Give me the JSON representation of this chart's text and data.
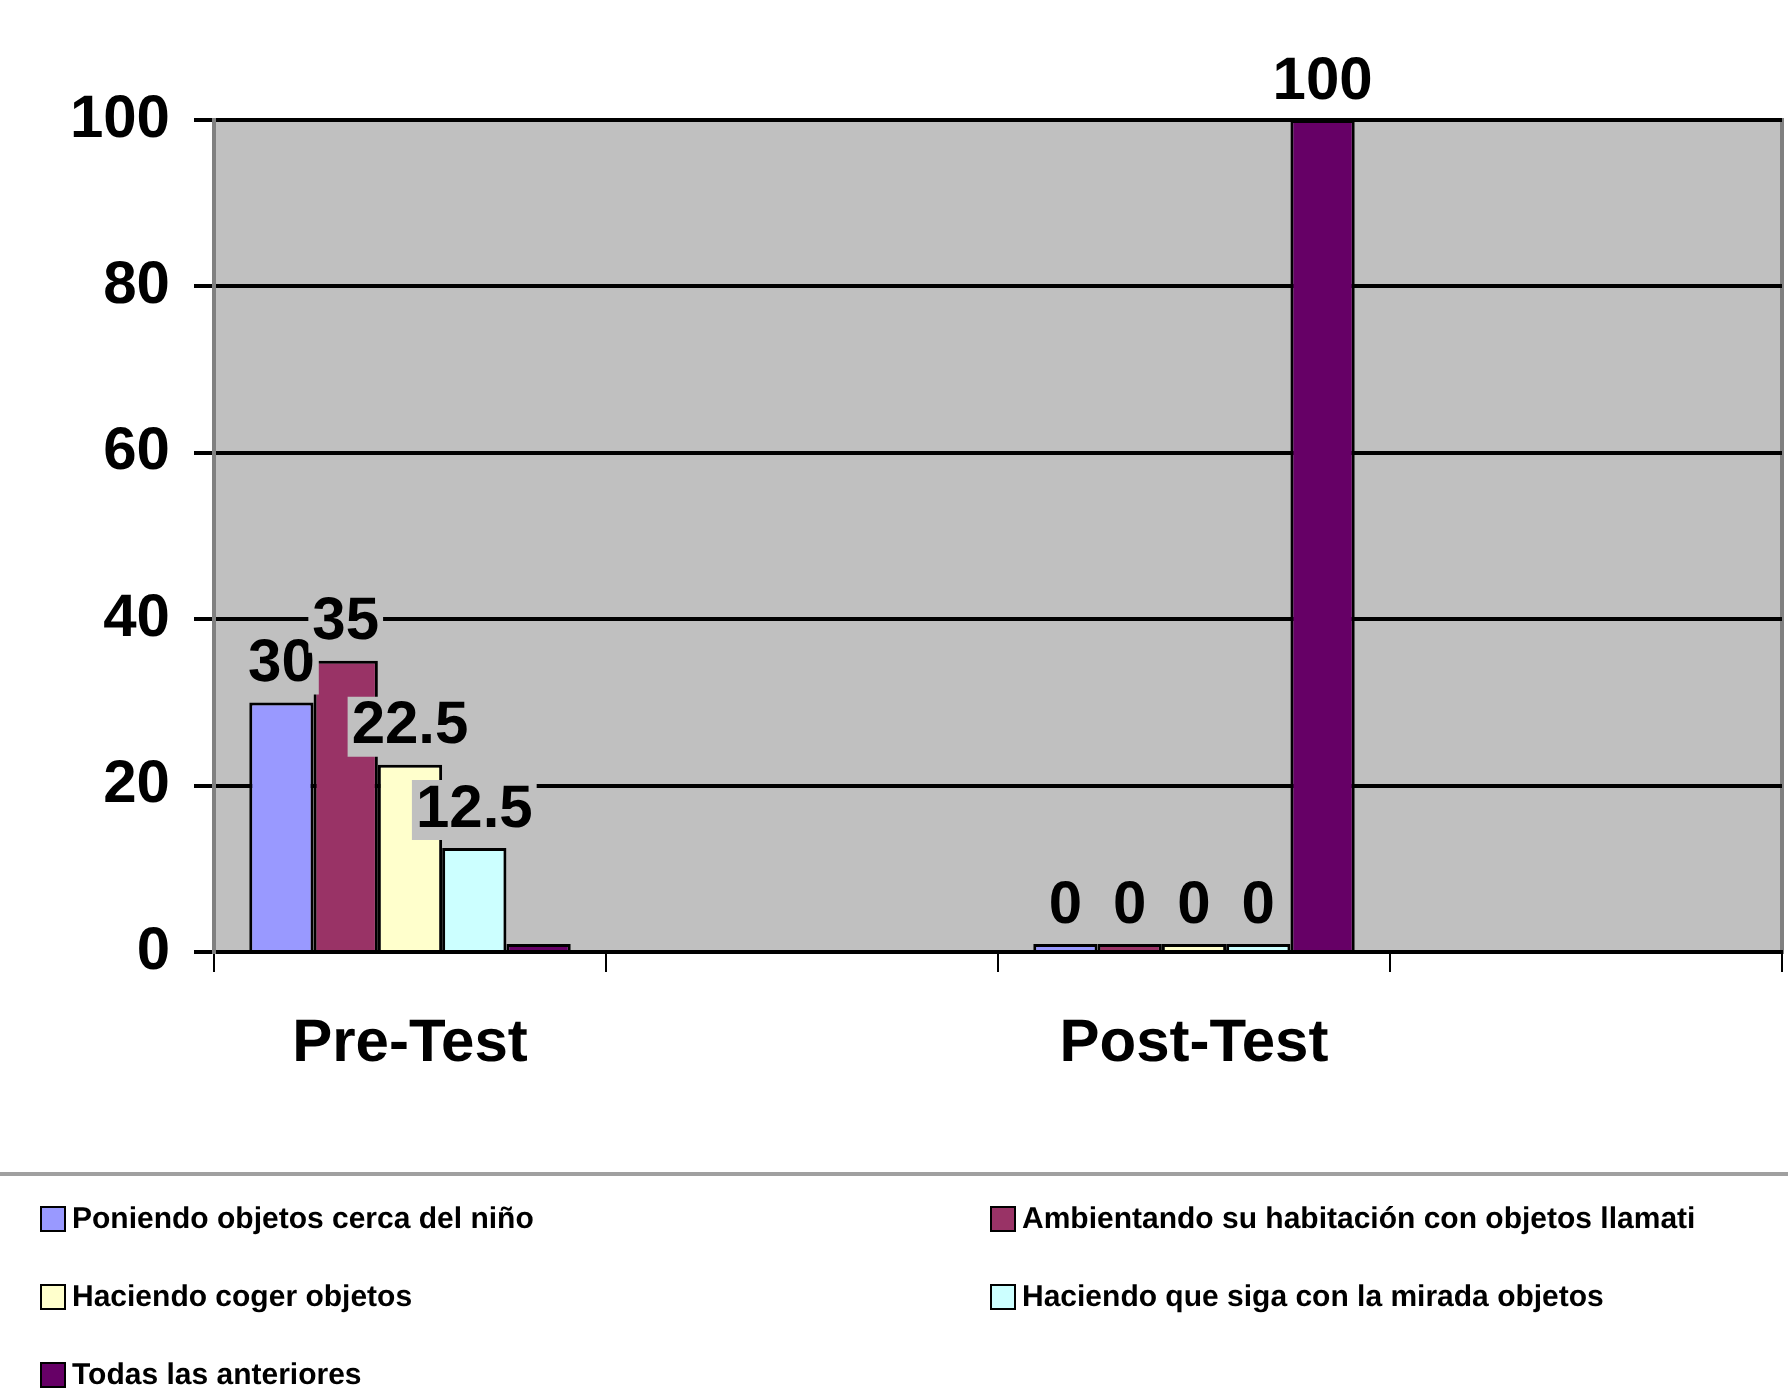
{
  "chart_data": {
    "type": "bar",
    "categories": [
      "Pre-Test",
      null,
      "Post-Test",
      null
    ],
    "series": [
      {
        "name": "Poniendo objetos cerca del niño",
        "color": "#9999ff",
        "values": [
          30,
          null,
          0,
          null
        ],
        "value_labels": [
          "30",
          null,
          "0",
          null
        ]
      },
      {
        "name": "Ambientando su habitación con objetos llamati",
        "color": "#993366",
        "values": [
          35,
          null,
          0,
          null
        ],
        "value_labels": [
          "35",
          null,
          "0",
          null
        ]
      },
      {
        "name": "Haciendo coger objetos",
        "color": "#ffffcc",
        "values": [
          22.5,
          null,
          0,
          null
        ],
        "value_labels": [
          "22.5",
          null,
          "0",
          null
        ]
      },
      {
        "name": "Haciendo que siga con la mirada objetos",
        "color": "#ccffff",
        "values": [
          12.5,
          null,
          0,
          null
        ],
        "value_labels": [
          "12.5",
          null,
          "0",
          null
        ]
      },
      {
        "name": "Todas las anteriores",
        "color": "#660066",
        "values": [
          0,
          null,
          100,
          null
        ],
        "value_labels": [
          null,
          null,
          "100",
          null
        ]
      }
    ],
    "ylim": [
      0,
      100
    ],
    "yticks": [
      0,
      20,
      40,
      60,
      80,
      100
    ],
    "grid": "y",
    "legend": "bottom"
  }
}
